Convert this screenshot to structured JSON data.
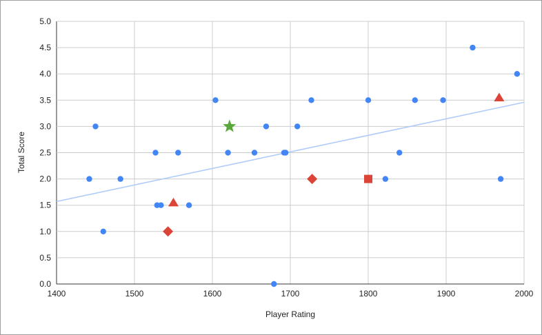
{
  "chart_data": {
    "type": "scatter",
    "title": "",
    "xlabel": "Player Rating",
    "ylabel": "Total Score",
    "xlim": [
      1400,
      2000
    ],
    "ylim": [
      0,
      5
    ],
    "xticks": [
      "1400",
      "1500",
      "1600",
      "1700",
      "1800",
      "1900",
      "2000"
    ],
    "yticks": [
      "0.0",
      "0.5",
      "1.0",
      "1.5",
      "2.0",
      "2.5",
      "3.0",
      "3.5",
      "4.0",
      "4.5",
      "5.0"
    ],
    "grid": true,
    "legend": "none",
    "series": [
      {
        "marker": "circle",
        "color": "#4285f4",
        "points": [
          [
            1442,
            2.0
          ],
          [
            1450,
            3.0
          ],
          [
            1460,
            1.0
          ],
          [
            1482,
            2.0
          ],
          [
            1527,
            2.5
          ],
          [
            1529,
            1.5
          ],
          [
            1534,
            1.5
          ],
          [
            1556,
            2.5
          ],
          [
            1570,
            1.5
          ],
          [
            1604,
            3.5
          ],
          [
            1620,
            2.5
          ],
          [
            1654,
            2.5
          ],
          [
            1669,
            3.0
          ],
          [
            1679,
            0.0
          ],
          [
            1692,
            2.5
          ],
          [
            1694,
            2.5
          ],
          [
            1709,
            3.0
          ],
          [
            1727,
            3.5
          ],
          [
            1800,
            3.5
          ],
          [
            1822,
            2.0
          ],
          [
            1840,
            2.5
          ],
          [
            1860,
            3.5
          ],
          [
            1896,
            3.5
          ],
          [
            1934,
            4.5
          ],
          [
            1970,
            2.0
          ],
          [
            1991,
            4.0
          ]
        ]
      },
      {
        "marker": "triangle",
        "color": "#db4437",
        "points": [
          [
            1550,
            1.55
          ],
          [
            1968,
            3.55
          ]
        ]
      },
      {
        "marker": "diamond",
        "color": "#db4437",
        "points": [
          [
            1543,
            1.0
          ],
          [
            1728,
            2.0
          ]
        ]
      },
      {
        "marker": "square",
        "color": "#db4437",
        "points": [
          [
            1800,
            2.0
          ]
        ]
      },
      {
        "marker": "star",
        "color": "#5aa83a",
        "points": [
          [
            1622,
            3.0
          ]
        ]
      }
    ],
    "trendline": {
      "color": "#aecbfa",
      "from": [
        1400,
        1.57
      ],
      "to": [
        2000,
        3.46
      ]
    }
  }
}
